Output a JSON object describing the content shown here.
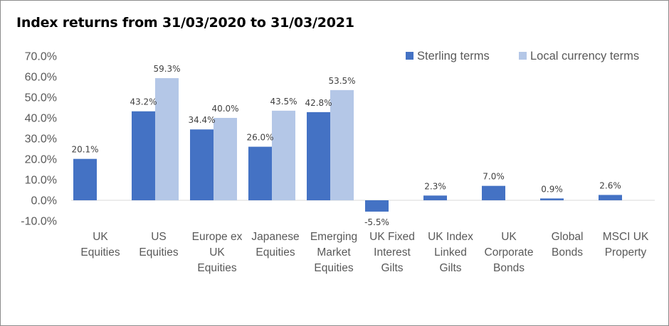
{
  "chart_data": {
    "type": "bar",
    "title": "Index returns from 31/03/2020 to 31/03/2021",
    "xlabel": "",
    "ylabel": "",
    "ylim": [
      -10,
      70
    ],
    "yticks": [
      "70.0%",
      "60.0%",
      "50.0%",
      "40.0%",
      "30.0%",
      "20.0%",
      "10.0%",
      "0.0%",
      "-10.0%"
    ],
    "ytick_values": [
      70,
      60,
      50,
      40,
      30,
      20,
      10,
      0,
      -10
    ],
    "grid": false,
    "legend_position": "top-right",
    "categories": [
      [
        "UK",
        "Equities"
      ],
      [
        "US",
        "Equities"
      ],
      [
        "Europe ex",
        "UK",
        "Equities"
      ],
      [
        "Japanese",
        "Equities"
      ],
      [
        "Emerging",
        "Market",
        "Equities"
      ],
      [
        "UK Fixed",
        "Interest",
        "Gilts"
      ],
      [
        "UK Index",
        "Linked",
        "Gilts"
      ],
      [
        "UK",
        "Corporate",
        "Bonds"
      ],
      [
        "Global",
        "Bonds"
      ],
      [
        "MSCI UK",
        "Property"
      ]
    ],
    "series": [
      {
        "name": "Sterling terms",
        "color": "#4472c4",
        "values": [
          20.1,
          43.2,
          34.4,
          26.0,
          42.8,
          -5.5,
          2.3,
          7.0,
          0.9,
          2.6
        ],
        "labels": [
          "20.1%",
          "43.2%",
          "34.4%",
          "26.0%",
          "42.8%",
          "-5.5%",
          "2.3%",
          "7.0%",
          "0.9%",
          "2.6%"
        ]
      },
      {
        "name": "Local currency terms",
        "color": "#b4c7e7",
        "values": [
          null,
          59.3,
          40.0,
          43.5,
          53.5,
          null,
          null,
          null,
          null,
          null
        ],
        "labels": [
          null,
          "59.3%",
          "40.0%",
          "43.5%",
          "53.5%",
          null,
          null,
          null,
          null,
          null
        ]
      }
    ]
  }
}
